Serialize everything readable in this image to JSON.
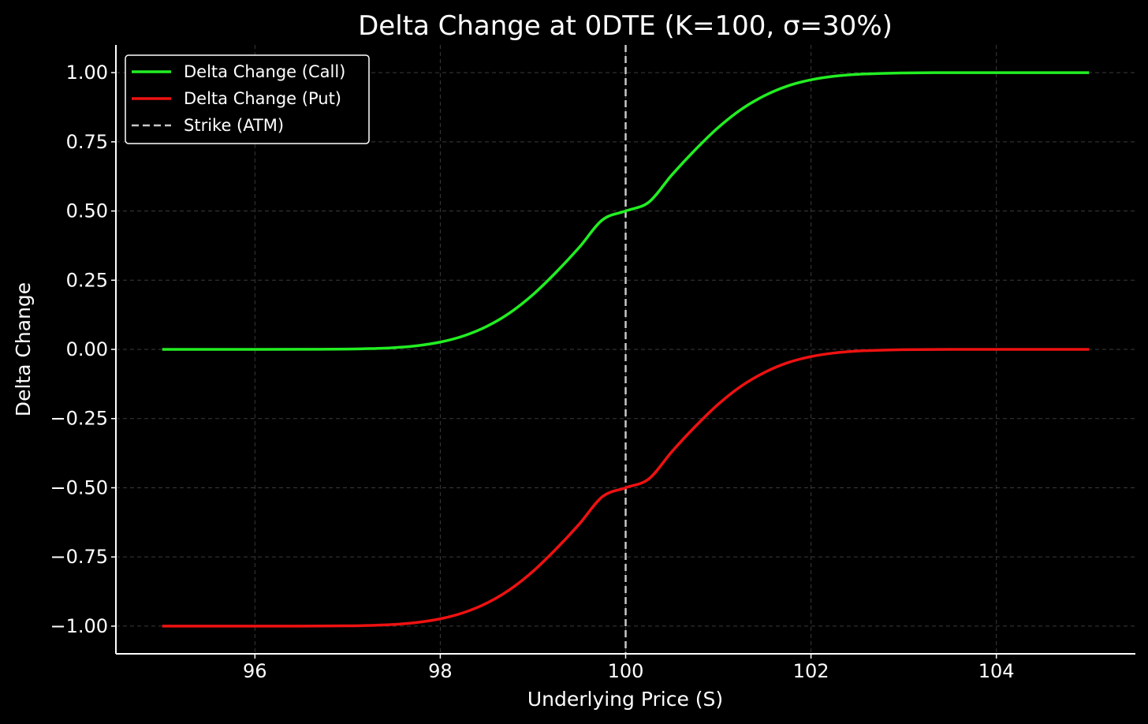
{
  "chart_data": {
    "type": "line",
    "title": "Delta Change at 0DTE (K=100, σ=30%)",
    "xlabel": "Underlying Price (S)",
    "ylabel": "Delta Change",
    "xlim": [
      94.5,
      105.5
    ],
    "ylim": [
      -1.1,
      1.1
    ],
    "x_ticks": [
      96,
      98,
      100,
      102,
      104
    ],
    "x_tick_labels": [
      "96",
      "98",
      "100",
      "102",
      "104"
    ],
    "y_ticks": [
      1.0,
      0.75,
      0.5,
      0.25,
      0.0,
      -0.25,
      -0.5,
      -0.75,
      -1.0
    ],
    "y_tick_labels": [
      "1.00",
      "0.75",
      "0.50",
      "0.25",
      "0.00",
      "−0.25",
      "−0.50",
      "−0.75",
      "−1.00"
    ],
    "grid": true,
    "legend_position": "top-left",
    "x": [
      95,
      95.5,
      96,
      96.5,
      97,
      97.25,
      97.5,
      97.75,
      98,
      98.25,
      98.5,
      98.75,
      99,
      99.25,
      99.5,
      99.75,
      100,
      100.25,
      100.5,
      100.75,
      101,
      101.25,
      101.5,
      101.75,
      102,
      102.25,
      102.5,
      102.75,
      103,
      103.5,
      104,
      104.5,
      105
    ],
    "series": [
      {
        "name": "Delta Change (Call)",
        "color": "#22ee22",
        "style": "solid",
        "values": [
          0.0,
          0.0,
          0.0,
          0.0002,
          0.0011,
          0.0027,
          0.0062,
          0.0133,
          0.0264,
          0.0485,
          0.0828,
          0.132,
          0.198,
          0.279,
          0.369,
          0.468,
          0.5,
          0.532,
          0.631,
          0.721,
          0.802,
          0.868,
          0.917,
          0.952,
          0.974,
          0.987,
          0.994,
          0.997,
          0.999,
          1.0,
          1.0,
          1.0,
          1.0
        ]
      },
      {
        "name": "Delta Change (Put)",
        "color": "#ee1111",
        "style": "solid",
        "values": [
          -1.0,
          -1.0,
          -1.0,
          -0.9998,
          -0.9989,
          -0.9973,
          -0.9938,
          -0.9867,
          -0.9736,
          -0.9515,
          -0.9172,
          -0.868,
          -0.802,
          -0.721,
          -0.631,
          -0.532,
          -0.5,
          -0.468,
          -0.369,
          -0.279,
          -0.198,
          -0.132,
          -0.083,
          -0.048,
          -0.026,
          -0.013,
          -0.006,
          -0.003,
          -0.001,
          0.0,
          0.0,
          0.0,
          0.0
        ]
      }
    ],
    "vlines": [
      {
        "name": "Strike (ATM)",
        "x": 100,
        "color": "#c8c8c8",
        "style": "dashed"
      }
    ]
  }
}
